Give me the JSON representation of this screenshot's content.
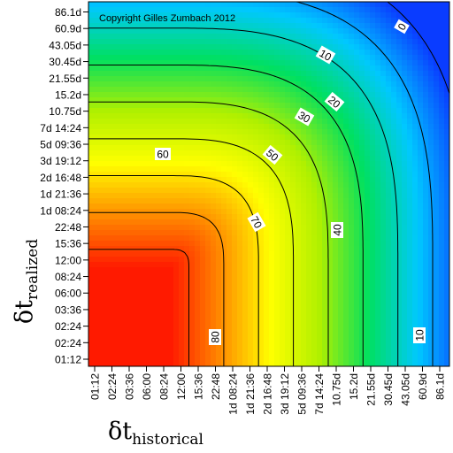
{
  "chart_data": {
    "type": "heatmap",
    "copyright": "Copyright Gilles Zumbach 2012",
    "xlabel": {
      "symbol": "δt",
      "subscript": "historical"
    },
    "ylabel": {
      "symbol": "δt",
      "subscript": "realized"
    },
    "x_ticks": [
      "01:12",
      "02:24",
      "03:36",
      "06:00",
      "08:24",
      "12:00",
      "15:36",
      "22:48",
      "1d 08:24",
      "1d 21:36",
      "2d 16:48",
      "3d 19:12",
      "5d 09:36",
      "7d 14:24",
      "10.75d",
      "15.2d",
      "21.55d",
      "30.45d",
      "43.05d",
      "60.9d",
      "86.1d"
    ],
    "y_ticks": [
      "01:12",
      "02:24",
      "02:24",
      "03:36",
      "06:00",
      "08:24",
      "12:00",
      "15:36",
      "22:48",
      "1d 08:24",
      "1d 21:36",
      "2d 16:48",
      "3d 19:12",
      "5d 09:36",
      "7d 14:24",
      "10.75d",
      "15.2d",
      "21.55d",
      "30.45d",
      "43.05d",
      "60.9d",
      "86.1d"
    ],
    "contour_levels": [
      0,
      10,
      20,
      30,
      40,
      50,
      60,
      70,
      80
    ],
    "contour_labels": [
      "0",
      "10",
      "20",
      "30",
      "40",
      "50",
      "60",
      "70",
      "80",
      "10"
    ],
    "value_range": [
      0,
      85
    ],
    "colormap": [
      "#0a3cff",
      "#00c8ff",
      "#00e060",
      "#b0f000",
      "#ffff00",
      "#ff8c00",
      "#ff1a00"
    ],
    "grid": false,
    "legend": "none"
  }
}
